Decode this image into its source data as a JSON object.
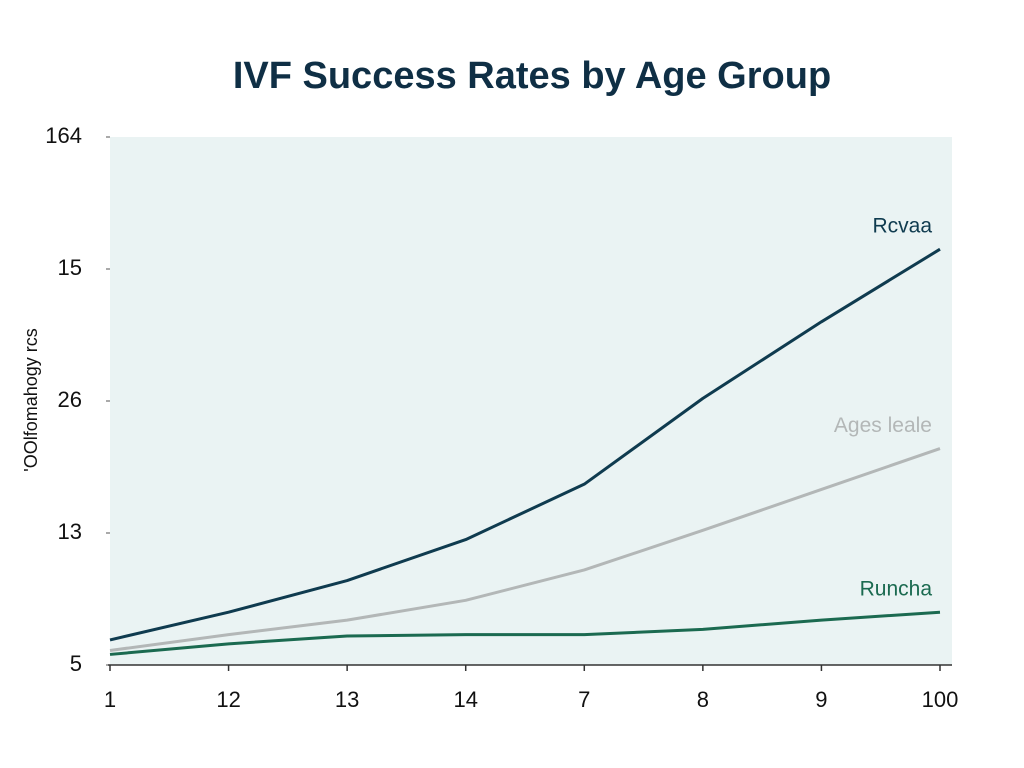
{
  "chart_data": {
    "type": "line",
    "title": "IVF Success Rates by Age Group",
    "y_label": "'OOlfomahogy rcs",
    "categories": [
      "1",
      "12",
      "13",
      "14",
      "7",
      "8",
      "9",
      "100"
    ],
    "series": [
      {
        "name": "Rcvaa",
        "color": "#0f3b4f",
        "values": [
          0.19,
          0.4,
          0.64,
          0.95,
          1.37,
          2.02,
          2.6,
          3.15
        ]
      },
      {
        "name": "Ages leale",
        "color": "#b3b7b7",
        "values": [
          0.11,
          0.23,
          0.34,
          0.49,
          0.72,
          1.02,
          1.33,
          1.64
        ]
      },
      {
        "name": "Runcha",
        "color": "#1b6a50",
        "values": [
          0.08,
          0.16,
          0.22,
          0.23,
          0.23,
          0.27,
          0.34,
          0.4
        ]
      }
    ],
    "ylim": [
      0,
      4
    ],
    "yticks": [
      {
        "value": 0,
        "label": "5"
      },
      {
        "value": 1,
        "label": "13"
      },
      {
        "value": 2,
        "label": "26"
      },
      {
        "value": 3,
        "label": "15"
      },
      {
        "value": 4,
        "label": "164"
      }
    ],
    "background": "#eaf3f3"
  }
}
